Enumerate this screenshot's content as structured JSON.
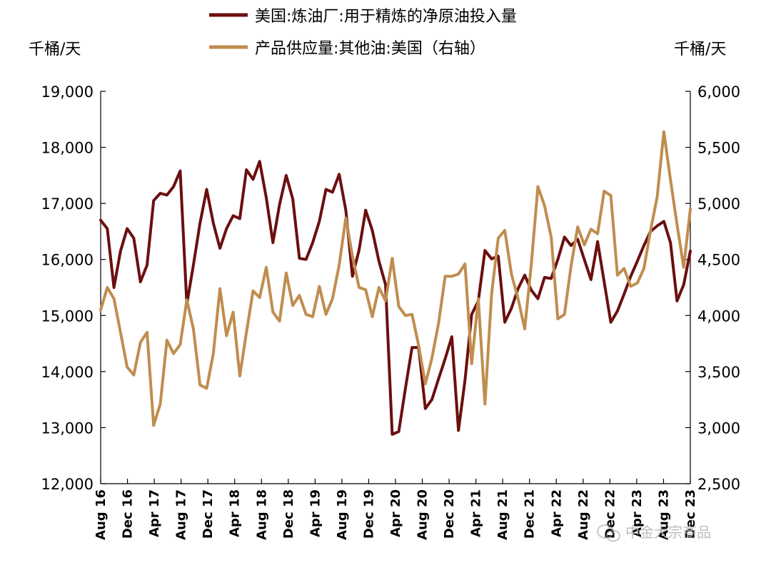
{
  "chart_data": {
    "type": "line",
    "left_unit": "千桶/天",
    "right_unit": "千桶/天",
    "y_left": {
      "min": 12000,
      "max": 19000,
      "ticks": [
        "12,000",
        "13,000",
        "14,000",
        "15,000",
        "16,000",
        "17,000",
        "18,000",
        "19,000"
      ]
    },
    "y_right": {
      "min": 2500,
      "max": 6000,
      "ticks": [
        "2,500",
        "3,000",
        "3,500",
        "4,000",
        "4,500",
        "5,000",
        "5,500",
        "6,000"
      ]
    },
    "x": {
      "start": "Aug 16",
      "end": "Dec 23",
      "labels": [
        "Aug 16",
        "Dec 16",
        "Apr 17",
        "Aug 17",
        "Dec 17",
        "Apr 18",
        "Aug 18",
        "Dec 18",
        "Apr 19",
        "Aug 19",
        "Dec 19",
        "Apr 20",
        "Aug 20",
        "Dec 20",
        "Apr 21",
        "Aug 21",
        "Dec 21",
        "Apr 22",
        "Aug 22",
        "Dec 22",
        "Apr 23",
        "Aug 23",
        "Dec 23"
      ]
    },
    "series": [
      {
        "name": "美国:炼油厂:用于精炼的净原油投入量",
        "axis": "left",
        "color": "#6b0f0f",
        "values": [
          16700,
          16550,
          15500,
          16150,
          16550,
          16380,
          15600,
          15900,
          17050,
          17180,
          17150,
          17300,
          17580,
          15200,
          15900,
          16650,
          17250,
          16650,
          16200,
          16550,
          16780,
          16730,
          17600,
          17430,
          17750,
          17100,
          16300,
          16980,
          17500,
          17080,
          16020,
          16000,
          16300,
          16680,
          17250,
          17200,
          17520,
          16880,
          15700,
          16170,
          16880,
          16520,
          15970,
          15550,
          12880,
          12930,
          13700,
          14430,
          14430,
          13340,
          13500,
          13870,
          14230,
          14620,
          12950,
          13850,
          15020,
          15260,
          16160,
          16010,
          16060,
          14880,
          15130,
          15480,
          15720,
          15450,
          15300,
          15680,
          15660,
          16000,
          16400,
          16250,
          16360,
          16000,
          15640,
          16320,
          15600,
          14880,
          15080,
          15380,
          15700,
          15970,
          16250,
          16500,
          16600,
          16680,
          16300,
          15260,
          15550,
          16150
        ]
      },
      {
        "name": "产品供应量:其他油:美国（右轴）",
        "axis": "right",
        "color": "#c08d4f",
        "values": [
          4050,
          4250,
          4150,
          3850,
          3540,
          3470,
          3760,
          3850,
          3020,
          3210,
          3780,
          3660,
          3740,
          4140,
          3880,
          3380,
          3350,
          3660,
          4240,
          3820,
          4030,
          3460,
          3850,
          4220,
          4160,
          4430,
          4030,
          3950,
          4380,
          4090,
          4180,
          4010,
          3990,
          4260,
          4010,
          4150,
          4450,
          4870,
          4530,
          4250,
          4230,
          3990,
          4250,
          4130,
          4510,
          4080,
          4000,
          4010,
          3730,
          3390,
          3620,
          3930,
          4350,
          4350,
          4370,
          4460,
          3570,
          4150,
          3210,
          4190,
          4690,
          4760,
          4370,
          4150,
          3880,
          4460,
          5150,
          4980,
          4700,
          3970,
          4010,
          4440,
          4790,
          4630,
          4770,
          4730,
          5110,
          5070,
          4360,
          4420,
          4260,
          4290,
          4420,
          4760,
          5060,
          5640,
          5210,
          4810,
          4430,
          4950
        ]
      }
    ]
  },
  "watermark": {
    "text": "中金大宗商品"
  }
}
